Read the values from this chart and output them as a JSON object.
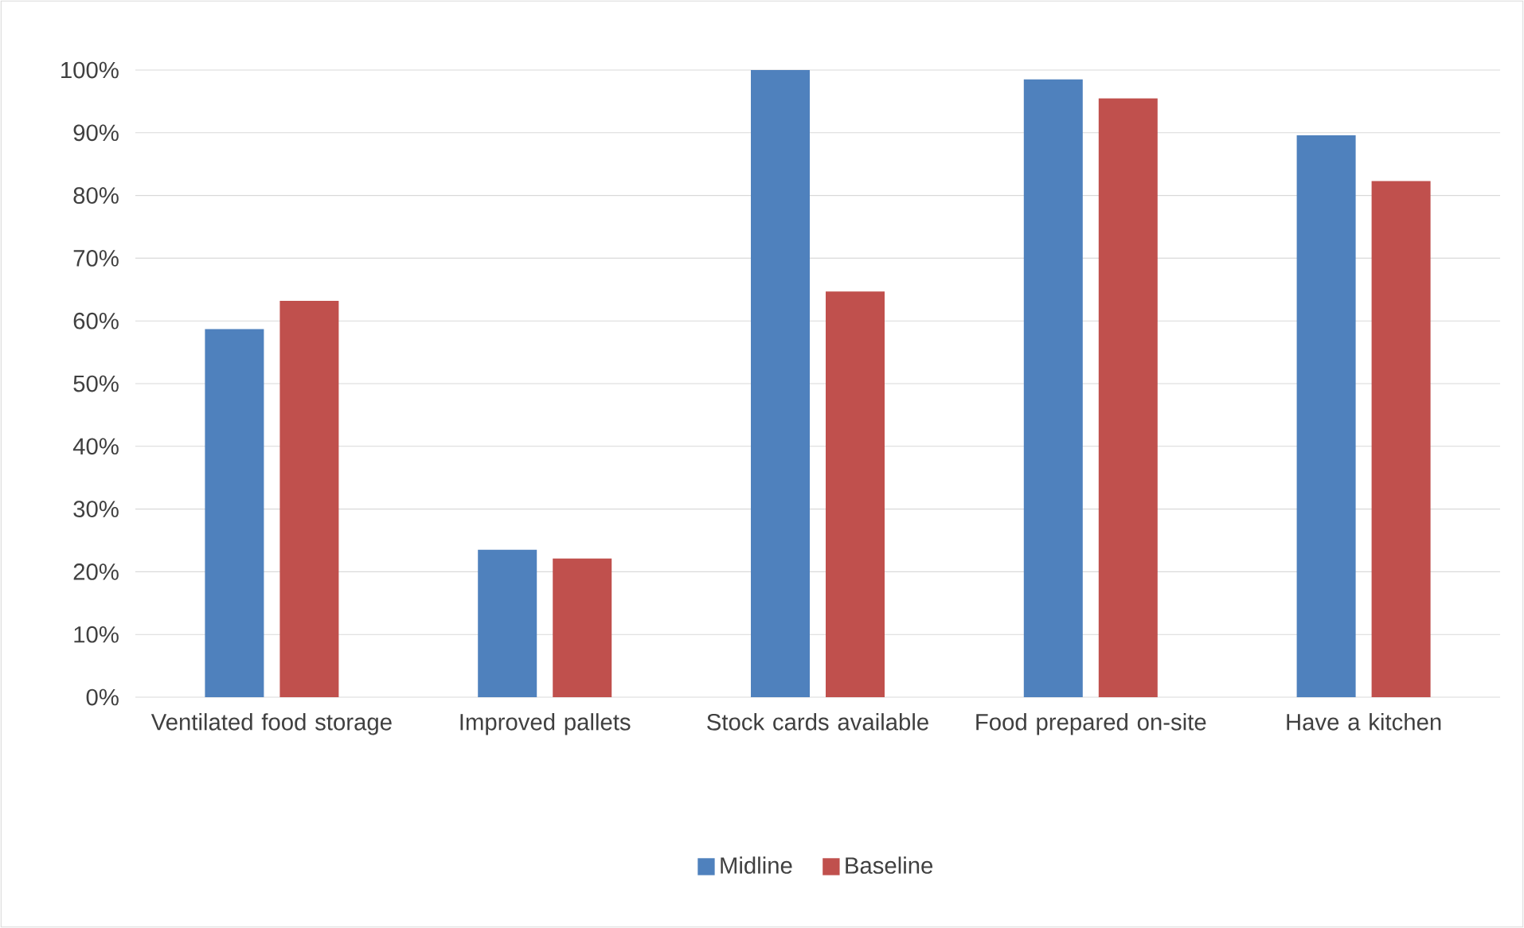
{
  "chart_data": {
    "type": "bar",
    "categories": [
      "Ventilated food storage",
      "Improved pallets",
      "Stock cards available",
      "Food prepared on-site",
      "Have a kitchen"
    ],
    "series": [
      {
        "name": "Midline",
        "color": "#4f81bd",
        "values": [
          58.7,
          23.5,
          100,
          98.5,
          89.6
        ]
      },
      {
        "name": "Baseline",
        "color": "#c0504d",
        "values": [
          63.2,
          22.1,
          64.7,
          95.5,
          82.3
        ]
      }
    ],
    "ylim": [
      0,
      100
    ],
    "yticks": [
      {
        "value": 0,
        "label": "0%"
      },
      {
        "value": 10,
        "label": "10%"
      },
      {
        "value": 20,
        "label": "20%"
      },
      {
        "value": 30,
        "label": "30%"
      },
      {
        "value": 40,
        "label": "40%"
      },
      {
        "value": 50,
        "label": "50%"
      },
      {
        "value": 60,
        "label": "60%"
      },
      {
        "value": 70,
        "label": "70%"
      },
      {
        "value": 80,
        "label": "80%"
      },
      {
        "value": 90,
        "label": "90%"
      },
      {
        "value": 100,
        "label": "100%"
      }
    ],
    "grid": "y",
    "legend": "bottom"
  }
}
